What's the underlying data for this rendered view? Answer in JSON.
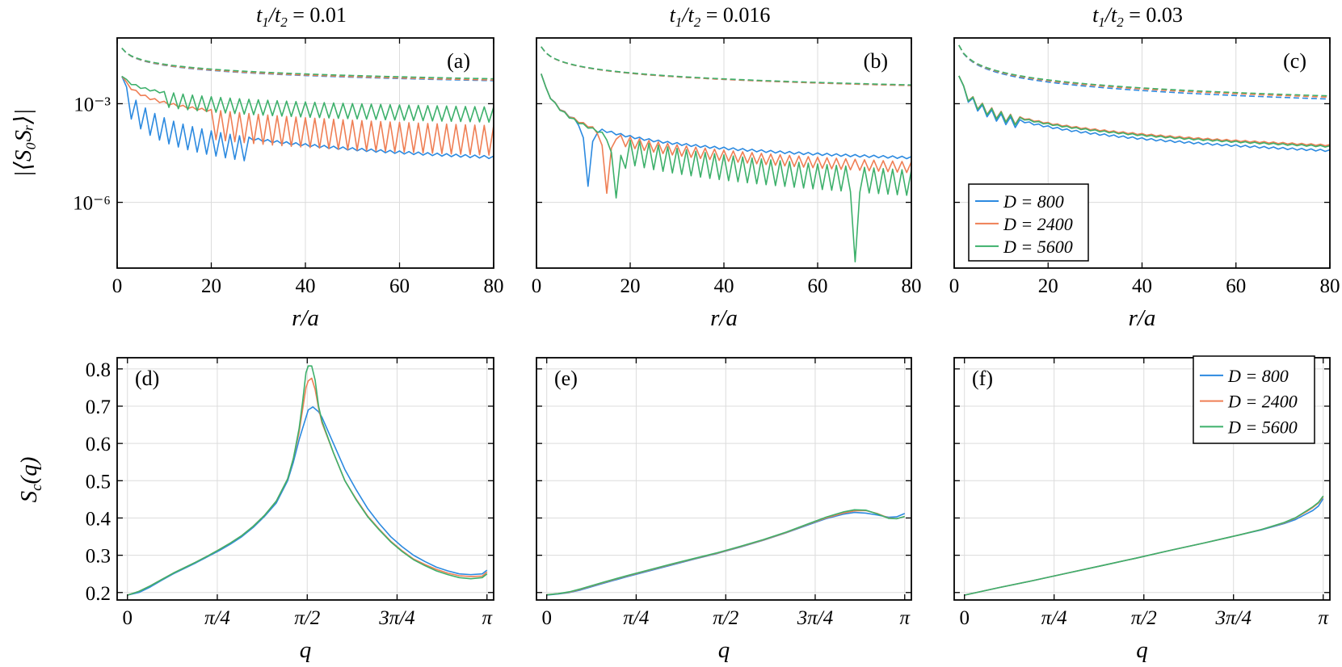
{
  "chart_data": [
    {
      "panel": "(a)",
      "type": "line",
      "title": "t₁/t₂ = 0.01",
      "xlabel": "r/a",
      "ylabel": "|⟨S₀Sᵣ⟩|",
      "yscale": "log",
      "xlim": [
        0,
        80
      ],
      "ylim": [
        1e-08,
        0.1
      ],
      "xticks": [
        0,
        20,
        40,
        60,
        80
      ],
      "xticklabels": [
        "0",
        "20",
        "40",
        "60",
        "80"
      ],
      "yticks": [
        0.001,
        1e-06
      ],
      "yticklabels": [
        "10⁻³",
        "10⁻⁶"
      ],
      "series": [
        {
          "name": "D = 800",
          "style": "solid",
          "color": "#2c8ae0",
          "model": {
            "kind": "osc",
            "a": 0.0068,
            "p": 1.35,
            "b": 1.08e-05,
            "q": 0.3,
            "amp": 0.6,
            "dip": {
              "from": 2,
              "to": 28,
              "ratio": 0.22
            },
            "amp2": 0.1
          }
        },
        {
          "name": "D = 2400",
          "style": "solid",
          "color": "#ef7f55",
          "model": {
            "kind": "osc",
            "a": 0.0068,
            "p": 0.84,
            "b": 9e-06,
            "q": 0,
            "amp": 0.55,
            "dip": {
              "from": 20,
              "to": 80,
              "ratio": 0.15
            }
          }
        },
        {
          "name": "D = 5600",
          "style": "solid",
          "color": "#3db06b",
          "model": {
            "kind": "osc",
            "a": 0.0068,
            "p": 0.53,
            "b": 1.8e-05,
            "q": 0,
            "amp": 0.45,
            "dip": {
              "from": 10,
              "to": 80,
              "ratio": 0.4
            }
          }
        },
        {
          "name": "D = 800 (dashed)",
          "style": "dashed",
          "color": "#2c8ae0",
          "model": {
            "kind": "pow",
            "a": 0.049,
            "p": 0.52
          }
        },
        {
          "name": "D = 2400 (dashed)",
          "style": "dashed",
          "color": "#ef7f55",
          "model": {
            "kind": "pow",
            "a": 0.049,
            "p": 0.51
          }
        },
        {
          "name": "D = 5600 (dashed)",
          "style": "dashed",
          "color": "#3db06b",
          "model": {
            "kind": "pow",
            "a": 0.049,
            "p": 0.49
          }
        }
      ]
    },
    {
      "panel": "(b)",
      "type": "line",
      "title": "t₁/t₂ = 0.016",
      "xlabel": "r/a",
      "ylabel": "",
      "yscale": "log",
      "xlim": [
        0,
        80
      ],
      "ylim": [
        1e-08,
        0.1
      ],
      "xticks": [
        0,
        20,
        40,
        60,
        80
      ],
      "xticklabels": [
        "0",
        "20",
        "40",
        "60",
        "80"
      ],
      "yticks": [
        0.001,
        1e-06
      ],
      "yticklabels": [],
      "series": [
        {
          "name": "D = 800",
          "style": "solid",
          "color": "#2c8ae0",
          "model": {
            "kind": "node",
            "a": 0.008,
            "p": 1.6,
            "b": 9.5e-05,
            "q": 0.44,
            "r0": 11,
            "w": 1.6,
            "amp": 0.5
          }
        },
        {
          "name": "D = 2400",
          "style": "solid",
          "color": "#ef7f55",
          "model": {
            "kind": "node",
            "a": 0.008,
            "p": 1.6,
            "b": 0.00011,
            "q": 0.62,
            "r0": 15,
            "w": 1.6,
            "amp": 0.5,
            "dip": {
              "from": 18,
              "to": 80,
              "ratio": 0.55
            }
          }
        },
        {
          "name": "D = 5600",
          "style": "solid",
          "color": "#3db06b",
          "model": {
            "kind": "node",
            "a": 0.008,
            "p": 1.6,
            "b": 0.000125,
            "q": 1.15,
            "r0": 17,
            "w": 1.8,
            "amp": 0.5,
            "dip": {
              "from": 18,
              "to": 80,
              "ratio": 0.2
            },
            "spike": {
              "r": 68,
              "v": 1.55e-08
            }
          }
        },
        {
          "name": "D = 800 (dashed)",
          "style": "dashed",
          "color": "#2c8ae0",
          "model": {
            "kind": "pow",
            "a": 0.054,
            "p": 0.62
          }
        },
        {
          "name": "D = 2400 (dashed)",
          "style": "dashed",
          "color": "#ef7f55",
          "model": {
            "kind": "pow",
            "a": 0.054,
            "p": 0.62
          }
        },
        {
          "name": "D = 5600 (dashed)",
          "style": "dashed",
          "color": "#3db06b",
          "model": {
            "kind": "pow",
            "a": 0.054,
            "p": 0.61
          }
        }
      ]
    },
    {
      "panel": "(c)",
      "type": "line",
      "title": "t₁/t₂ = 0.03",
      "xlabel": "r/a",
      "ylabel": "",
      "yscale": "log",
      "xlim": [
        0,
        80
      ],
      "ylim": [
        1e-08,
        0.1
      ],
      "xticks": [
        0,
        20,
        40,
        60,
        80
      ],
      "xticklabels": [
        "0",
        "20",
        "40",
        "60",
        "80"
      ],
      "yticks": [
        0.001,
        1e-06
      ],
      "yticklabels": [],
      "legend": {
        "placement": "bottom-left",
        "entries": [
          "D = 800",
          "D = 2400",
          "D = 5600"
        ]
      },
      "series": [
        {
          "name": "D = 800",
          "style": "solid",
          "color": "#2c8ae0",
          "model": {
            "kind": "osc",
            "a": 0.007,
            "p": 1.21,
            "b": 0,
            "q": 0,
            "amp": 0.4,
            "dip": {
              "from": 2,
              "to": 14,
              "ratio": 0.6
            }
          }
        },
        {
          "name": "D = 2400",
          "style": "solid",
          "color": "#ef7f55",
          "model": {
            "kind": "osc",
            "a": 0.007,
            "p": 1.12,
            "b": 0,
            "q": 0,
            "amp": 0.3,
            "dip": {
              "from": 2,
              "to": 14,
              "ratio": 0.6
            }
          }
        },
        {
          "name": "D = 5600",
          "style": "solid",
          "color": "#3db06b",
          "model": {
            "kind": "osc",
            "a": 0.007,
            "p": 1.14,
            "b": 0,
            "q": 0,
            "amp": 0.3,
            "dip": {
              "from": 2,
              "to": 14,
              "ratio": 0.6
            }
          }
        },
        {
          "name": "D = 800 (dashed)",
          "style": "dashed",
          "color": "#2c8ae0",
          "model": {
            "kind": "pow",
            "a": 0.06,
            "p": 0.86
          }
        },
        {
          "name": "D = 2400 (dashed)",
          "style": "dashed",
          "color": "#ef7f55",
          "model": {
            "kind": "pow",
            "a": 0.06,
            "p": 0.83
          }
        },
        {
          "name": "D = 5600 (dashed)",
          "style": "dashed",
          "color": "#3db06b",
          "model": {
            "kind": "pow",
            "a": 0.06,
            "p": 0.81
          }
        }
      ]
    },
    {
      "panel": "(d)",
      "type": "line",
      "title": "",
      "xlabel": "q",
      "ylabel": "S_c(q)",
      "yscale": "linear",
      "xlim": [
        -0.09,
        3.2
      ],
      "ylim": [
        0.18,
        0.83
      ],
      "xticks": [
        0,
        0.785,
        1.571,
        2.356,
        3.1416
      ],
      "xticklabels": [
        "0",
        "π/4",
        "π/2",
        "3π/4",
        "π"
      ],
      "yticks": [
        0.2,
        0.3,
        0.4,
        0.5,
        0.6,
        0.7,
        0.8
      ],
      "yticklabels": [
        "0.2",
        "0.3",
        "0.4",
        "0.5",
        "0.6",
        "0.7",
        "0.8"
      ],
      "series": [
        {
          "name": "D = 800",
          "color": "#2c8ae0",
          "x": [
            0,
            0.1,
            0.2,
            0.3,
            0.4,
            0.5,
            0.6,
            0.7,
            0.8,
            0.9,
            1.0,
            1.1,
            1.2,
            1.3,
            1.4,
            1.45,
            1.5,
            1.55,
            1.58,
            1.62,
            1.67,
            1.7,
            1.8,
            1.9,
            2.0,
            2.1,
            2.2,
            2.3,
            2.4,
            2.5,
            2.6,
            2.7,
            2.8,
            2.9,
            3.0,
            3.1,
            3.1416
          ],
          "values": [
            0.193,
            0.2,
            0.215,
            0.233,
            0.25,
            0.265,
            0.28,
            0.296,
            0.312,
            0.33,
            0.35,
            0.375,
            0.405,
            0.44,
            0.5,
            0.55,
            0.61,
            0.66,
            0.69,
            0.698,
            0.685,
            0.67,
            0.6,
            0.53,
            0.475,
            0.425,
            0.385,
            0.35,
            0.323,
            0.3,
            0.283,
            0.268,
            0.258,
            0.25,
            0.248,
            0.25,
            0.26
          ]
        },
        {
          "name": "D = 2400",
          "color": "#ef7f55",
          "x": [
            0,
            0.1,
            0.2,
            0.3,
            0.4,
            0.5,
            0.6,
            0.7,
            0.8,
            0.9,
            1.0,
            1.1,
            1.2,
            1.3,
            1.4,
            1.45,
            1.5,
            1.53,
            1.56,
            1.58,
            1.61,
            1.64,
            1.67,
            1.7,
            1.8,
            1.9,
            2.0,
            2.1,
            2.2,
            2.3,
            2.4,
            2.5,
            2.6,
            2.7,
            2.8,
            2.9,
            3.0,
            3.1,
            3.1416
          ],
          "values": [
            0.193,
            0.203,
            0.218,
            0.235,
            0.252,
            0.267,
            0.282,
            0.298,
            0.315,
            0.333,
            0.353,
            0.378,
            0.408,
            0.445,
            0.505,
            0.56,
            0.63,
            0.69,
            0.75,
            0.768,
            0.775,
            0.745,
            0.695,
            0.655,
            0.575,
            0.5,
            0.45,
            0.405,
            0.37,
            0.338,
            0.312,
            0.29,
            0.275,
            0.262,
            0.252,
            0.245,
            0.243,
            0.244,
            0.255
          ]
        },
        {
          "name": "D = 5600",
          "color": "#3db06b",
          "x": [
            0,
            0.1,
            0.2,
            0.3,
            0.4,
            0.5,
            0.6,
            0.7,
            0.8,
            0.9,
            1.0,
            1.1,
            1.2,
            1.3,
            1.4,
            1.45,
            1.5,
            1.53,
            1.56,
            1.58,
            1.61,
            1.64,
            1.67,
            1.7,
            1.8,
            1.9,
            2.0,
            2.1,
            2.2,
            2.3,
            2.4,
            2.5,
            2.6,
            2.7,
            2.8,
            2.9,
            3.0,
            3.1,
            3.1416
          ],
          "values": [
            0.193,
            0.203,
            0.218,
            0.235,
            0.252,
            0.267,
            0.282,
            0.298,
            0.315,
            0.333,
            0.353,
            0.378,
            0.408,
            0.445,
            0.505,
            0.56,
            0.64,
            0.71,
            0.79,
            0.808,
            0.808,
            0.77,
            0.7,
            0.66,
            0.575,
            0.5,
            0.448,
            0.403,
            0.368,
            0.336,
            0.31,
            0.288,
            0.272,
            0.258,
            0.248,
            0.24,
            0.237,
            0.24,
            0.25
          ]
        }
      ]
    },
    {
      "panel": "(e)",
      "type": "line",
      "title": "",
      "xlabel": "q",
      "ylabel": "",
      "yscale": "linear",
      "xlim": [
        -0.09,
        3.2
      ],
      "ylim": [
        0.18,
        0.83
      ],
      "xticks": [
        0,
        0.785,
        1.571,
        2.356,
        3.1416
      ],
      "xticklabels": [
        "0",
        "π/4",
        "π/2",
        "3π/4",
        "π"
      ],
      "yticks": [
        0.2,
        0.3,
        0.4,
        0.5,
        0.6,
        0.7,
        0.8
      ],
      "yticklabels": [],
      "series": [
        {
          "name": "D = 800",
          "color": "#2c8ae0",
          "x": [
            0,
            0.1,
            0.2,
            0.3,
            0.5,
            0.7,
            0.9,
            1.1,
            1.3,
            1.5,
            1.7,
            1.9,
            2.1,
            2.3,
            2.45,
            2.6,
            2.7,
            2.8,
            2.9,
            3.0,
            3.07,
            3.1416
          ],
          "values": [
            0.193,
            0.196,
            0.2,
            0.207,
            0.225,
            0.242,
            0.258,
            0.274,
            0.29,
            0.305,
            0.322,
            0.34,
            0.36,
            0.382,
            0.398,
            0.41,
            0.415,
            0.413,
            0.408,
            0.402,
            0.403,
            0.412
          ]
        },
        {
          "name": "D = 2400",
          "color": "#ef7f55",
          "x": [
            0,
            0.1,
            0.2,
            0.3,
            0.5,
            0.7,
            0.9,
            1.1,
            1.3,
            1.5,
            1.7,
            1.9,
            2.1,
            2.3,
            2.45,
            2.6,
            2.7,
            2.8,
            2.9,
            3.0,
            3.07,
            3.1416
          ],
          "values": [
            0.194,
            0.197,
            0.201,
            0.209,
            0.227,
            0.244,
            0.26,
            0.276,
            0.291,
            0.306,
            0.323,
            0.341,
            0.361,
            0.384,
            0.4,
            0.413,
            0.419,
            0.42,
            0.412,
            0.4,
            0.398,
            0.404
          ]
        },
        {
          "name": "D = 5600",
          "color": "#3db06b",
          "x": [
            0,
            0.1,
            0.2,
            0.3,
            0.5,
            0.7,
            0.9,
            1.1,
            1.3,
            1.5,
            1.7,
            1.9,
            2.1,
            2.3,
            2.45,
            2.6,
            2.7,
            2.8,
            2.9,
            3.0,
            3.07,
            3.1416
          ],
          "values": [
            0.194,
            0.197,
            0.202,
            0.21,
            0.228,
            0.245,
            0.261,
            0.277,
            0.292,
            0.307,
            0.324,
            0.342,
            0.362,
            0.385,
            0.402,
            0.416,
            0.422,
            0.421,
            0.411,
            0.399,
            0.398,
            0.404
          ]
        }
      ]
    },
    {
      "panel": "(f)",
      "type": "line",
      "title": "",
      "xlabel": "q",
      "ylabel": "",
      "yscale": "linear",
      "xlim": [
        -0.09,
        3.2
      ],
      "ylim": [
        0.18,
        0.83
      ],
      "xticks": [
        0,
        0.785,
        1.571,
        2.356,
        3.1416
      ],
      "xticklabels": [
        "0",
        "π/4",
        "π/2",
        "3π/4",
        "π"
      ],
      "yticks": [
        0.2,
        0.3,
        0.4,
        0.5,
        0.6,
        0.7,
        0.8
      ],
      "yticklabels": [],
      "legend": {
        "placement": "top-right",
        "entries": [
          "D = 800",
          "D = 2400",
          "D = 5600"
        ]
      },
      "series": [
        {
          "name": "D = 800",
          "color": "#2c8ae0",
          "x": [
            0,
            0.3,
            0.6,
            0.9,
            1.2,
            1.5,
            1.8,
            2.1,
            2.4,
            2.6,
            2.8,
            2.9,
            3.0,
            3.05,
            3.1,
            3.1416
          ],
          "values": [
            0.193,
            0.213,
            0.232,
            0.252,
            0.272,
            0.292,
            0.313,
            0.333,
            0.354,
            0.368,
            0.385,
            0.396,
            0.412,
            0.42,
            0.432,
            0.452
          ]
        },
        {
          "name": "D = 2400",
          "color": "#ef7f55",
          "x": [
            0,
            0.3,
            0.6,
            0.9,
            1.2,
            1.5,
            1.8,
            2.1,
            2.4,
            2.6,
            2.8,
            2.9,
            3.0,
            3.05,
            3.1,
            3.1416
          ],
          "values": [
            0.193,
            0.213,
            0.232,
            0.252,
            0.272,
            0.292,
            0.313,
            0.333,
            0.354,
            0.369,
            0.387,
            0.4,
            0.418,
            0.428,
            0.44,
            0.457
          ]
        },
        {
          "name": "D = 5600",
          "color": "#3db06b",
          "x": [
            0,
            0.3,
            0.6,
            0.9,
            1.2,
            1.5,
            1.8,
            2.1,
            2.4,
            2.6,
            2.8,
            2.9,
            3.0,
            3.05,
            3.1,
            3.1416
          ],
          "values": [
            0.193,
            0.213,
            0.232,
            0.252,
            0.272,
            0.292,
            0.313,
            0.333,
            0.354,
            0.369,
            0.388,
            0.401,
            0.42,
            0.43,
            0.442,
            0.459
          ]
        }
      ]
    }
  ],
  "figure": {
    "row_titles": [
      "t1/t2 = 0.01",
      "t1/t2 = 0.016",
      "t1/t2 = 0.03"
    ],
    "xlabel_top": "r/a",
    "xlabel_bottom": "q",
    "ylabel_top": "|⟨S₀Sᵣ⟩|",
    "ylabel_bottom": "S_c(q)",
    "panel_labels": [
      "(a)",
      "(b)",
      "(c)",
      "(d)",
      "(e)",
      "(f)"
    ],
    "legend_entries": [
      "D = 800",
      "D = 2400",
      "D = 5600"
    ],
    "colors": {
      "d800": "#2c8ae0",
      "d2400": "#ef7f55",
      "d5600": "#3db06b"
    }
  }
}
